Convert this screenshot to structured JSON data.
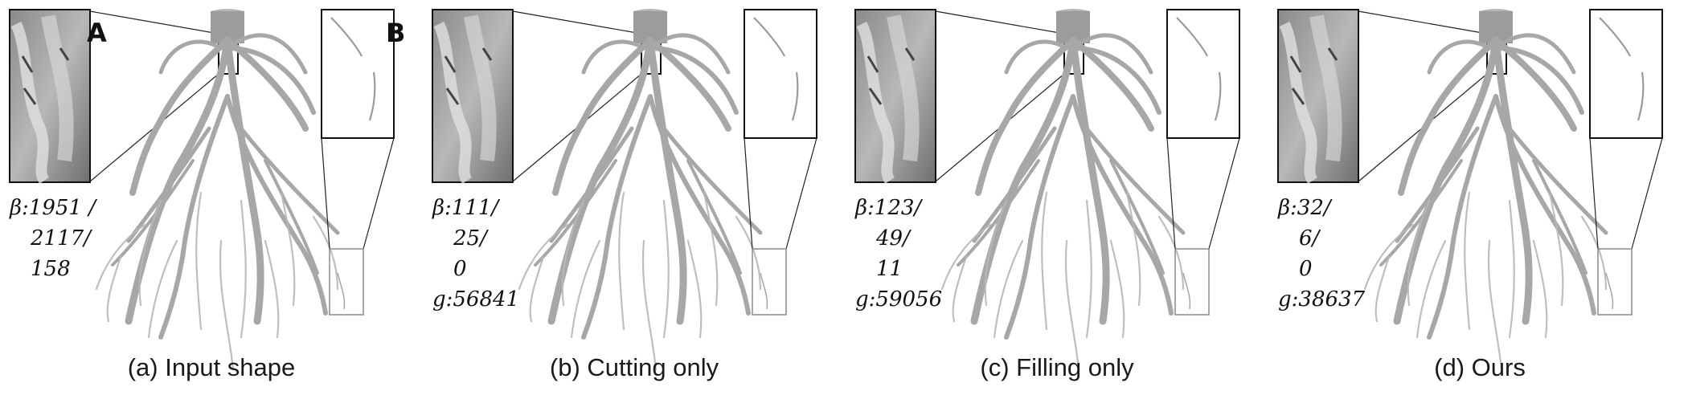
{
  "figure": {
    "panel_letters": [
      "A",
      "B"
    ],
    "panels": [
      {
        "id": "a",
        "caption": "(a) Input shape",
        "stats": [
          "β:1951 /",
          "2117/",
          "158"
        ]
      },
      {
        "id": "b",
        "caption": "(b) Cutting only",
        "stats": [
          "β:111/",
          "25/",
          "0",
          "g:56841"
        ]
      },
      {
        "id": "c",
        "caption": "(c) Filling only",
        "stats": [
          "β:123/",
          "49/",
          "11",
          "g:59056"
        ]
      },
      {
        "id": "d",
        "caption": "(d) Ours",
        "stats": [
          "β:32/",
          "6/",
          "0",
          "g:38637"
        ]
      }
    ]
  }
}
